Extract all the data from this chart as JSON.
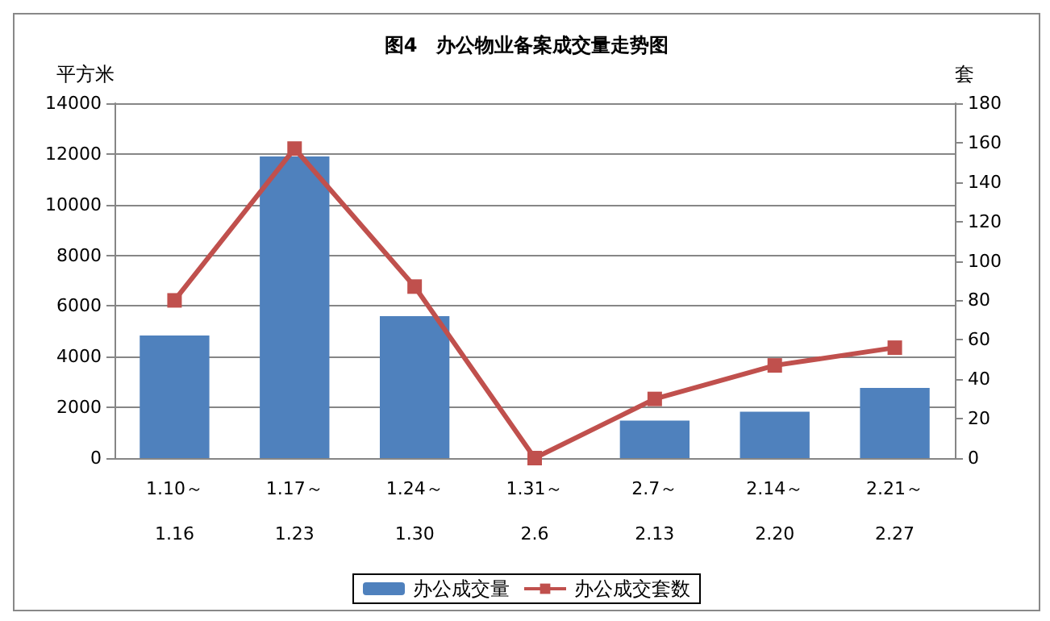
{
  "chart_data": {
    "type": "bar",
    "title": "图4　办公物业备案成交量走势图",
    "ylabel": "平方米",
    "y2label": "套",
    "categories": [
      "1.10～\n\n1.16",
      "1.17～\n\n1.23",
      "1.24～\n\n1.30",
      "1.31～\n\n2.6",
      "2.7～\n\n2.13",
      "2.14～\n\n2.20",
      "2.21～\n\n2.27"
    ],
    "series": [
      {
        "name": "办公成交量",
        "color": "#4f81bd",
        "values": [
          4840,
          11900,
          5600,
          0,
          1480,
          1830,
          2770
        ]
      },
      {
        "name": "办公成交套数",
        "type": "line",
        "axis": "y2",
        "color": "#c0504d",
        "marker": "square",
        "values": [
          80,
          157,
          87,
          0,
          30,
          47,
          56
        ]
      }
    ],
    "ylim": [
      0,
      14000
    ],
    "yticks": [
      0,
      2000,
      4000,
      6000,
      8000,
      10000,
      12000,
      14000
    ],
    "y2lim": [
      0,
      180
    ],
    "y2ticks": [
      0,
      20,
      40,
      60,
      80,
      100,
      120,
      140,
      160,
      180
    ],
    "grid": "y",
    "legend": "bottom"
  }
}
